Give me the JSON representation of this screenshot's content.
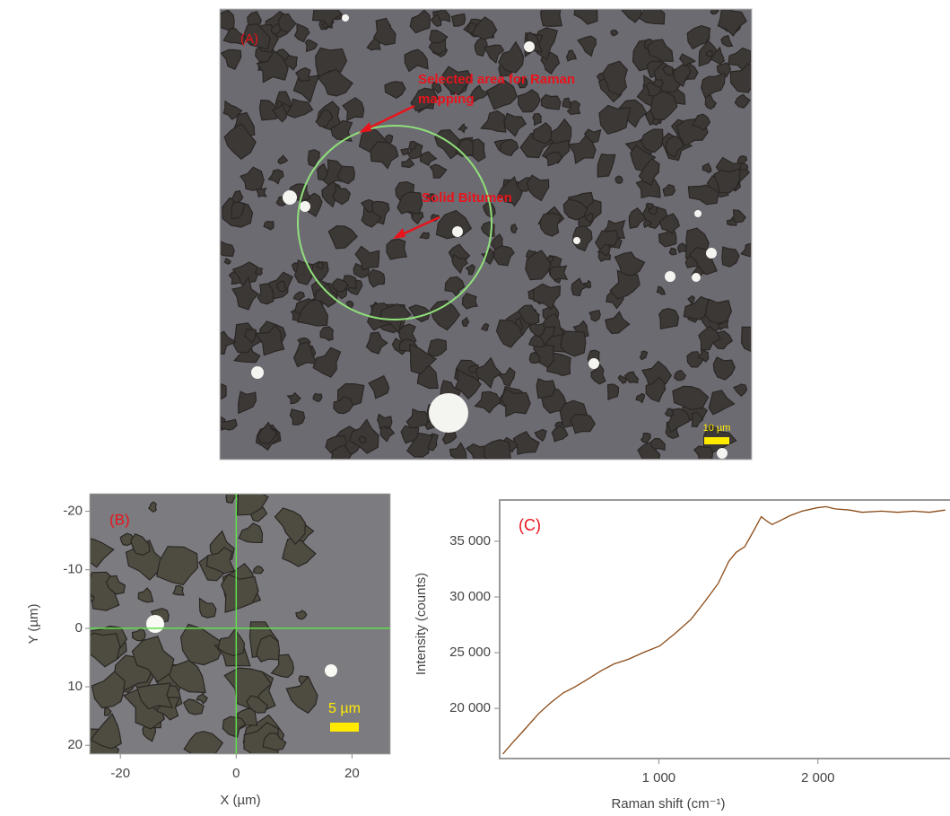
{
  "panel_a": {
    "label": "(A)",
    "annotations": [
      "Selected area for Raman mapping",
      "Solid Bitumen"
    ],
    "scale_bar": "10 µm"
  },
  "panel_b": {
    "label": "(B)",
    "xlabel": "X (µm)",
    "ylabel": "Y (µm)",
    "xlim": [
      -25.3,
      26.6
    ],
    "ylim": [
      -23,
      21.5
    ],
    "xticks": [
      -20,
      0,
      20
    ],
    "yticks": [
      -20,
      -10,
      0,
      10,
      20
    ],
    "scale_bar": "5 µm"
  },
  "chart_data": {
    "type": "line",
    "label": "(C)",
    "xlabel": "Raman shift (cm⁻¹)",
    "ylabel": "Intensity (counts)",
    "color": "#8b4a16",
    "xlim": [
      0,
      2830
    ],
    "ylim": [
      15500,
      38700
    ],
    "xticks": [
      {
        "value": 1000,
        "label": "1 000"
      },
      {
        "value": 2000,
        "label": "2 000"
      }
    ],
    "yticks": [
      {
        "value": 20000,
        "label": "20 000"
      },
      {
        "value": 25000,
        "label": "25 000"
      },
      {
        "value": 30000,
        "label": "30 000"
      },
      {
        "value": 35000,
        "label": "35 000"
      }
    ],
    "x": [
      20,
      80,
      150,
      243,
      320,
      400,
      469,
      550,
      640,
      720,
      808,
      900,
      1006,
      1100,
      1203,
      1290,
      1373,
      1440,
      1486,
      1540,
      1599,
      1644,
      1680,
      1712,
      1770,
      1825,
      1900,
      1994,
      2050,
      2107,
      2200,
      2277,
      2400,
      2500,
      2600,
      2700,
      2800
    ],
    "values": [
      15900,
      16900,
      18000,
      19500,
      20500,
      21400,
      21900,
      22600,
      23400,
      24000,
      24400,
      25000,
      25600,
      26700,
      28000,
      29600,
      31200,
      33200,
      34000,
      34500,
      36000,
      37200,
      36800,
      36500,
      36900,
      37300,
      37700,
      38000,
      38100,
      37900,
      37800,
      37600,
      37700,
      37600,
      37700,
      37600,
      37800
    ]
  }
}
